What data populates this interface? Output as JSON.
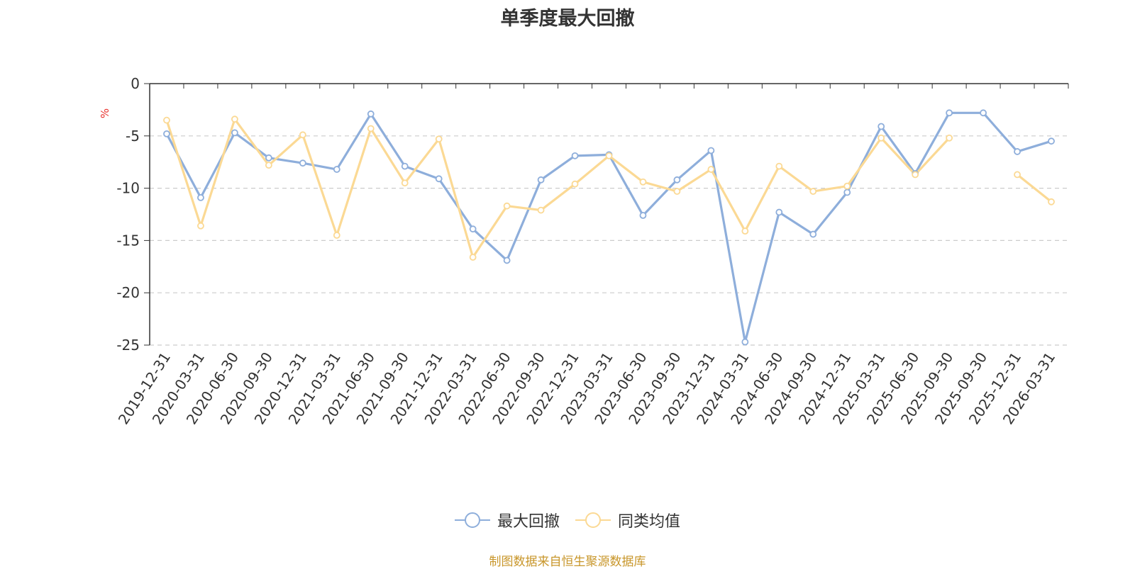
{
  "chart_data": {
    "type": "line",
    "title": "单季度最大回撤",
    "ylabel": "%",
    "ylim": [
      -25,
      0
    ],
    "yticks": [
      0,
      -5,
      -10,
      -15,
      -20,
      -25
    ],
    "grid": true,
    "legend_placement": "bottom",
    "categories": [
      "2019-12-31",
      "2020-03-31",
      "2020-06-30",
      "2020-09-30",
      "2020-12-31",
      "2021-03-31",
      "2021-06-30",
      "2021-09-30",
      "2021-12-31",
      "2022-03-31",
      "2022-06-30",
      "2022-09-30",
      "2022-12-31",
      "2023-03-31",
      "2023-06-30",
      "2023-09-30",
      "2023-12-31",
      "2024-03-31",
      "2024-06-30",
      "2024-09-30",
      "2024-12-31",
      "2025-03-31",
      "2025-06-30",
      "2025-09-30",
      "2025-09-30",
      "2025-12-31",
      "2026-03-31"
    ],
    "series": [
      {
        "name": "最大回撤",
        "color": "#8eaedb",
        "values": [
          -4.8,
          -10.9,
          -4.7,
          -7.1,
          -7.6,
          -8.2,
          -2.9,
          -7.9,
          -9.1,
          -13.9,
          -16.9,
          -9.2,
          -6.9,
          -6.8,
          -12.6,
          -9.2,
          -6.4,
          -24.7,
          -12.3,
          -14.4,
          -10.4,
          -4.1,
          -8.6,
          -2.8,
          -2.8,
          -6.5,
          -5.5
        ]
      },
      {
        "name": "同类均值",
        "color": "#fbd994",
        "values": [
          -3.5,
          -13.6,
          -3.4,
          -7.8,
          -4.9,
          -14.5,
          -4.3,
          -9.5,
          -5.3,
          -16.6,
          -11.7,
          -12.1,
          -9.6,
          -6.9,
          -9.4,
          -10.3,
          -8.2,
          -14.1,
          -7.9,
          -10.3,
          -9.8,
          -5.2,
          -8.7,
          -5.2,
          null,
          -8.7,
          -11.3
        ]
      }
    ]
  },
  "source_note": "制图数据来自恒生聚源数据库"
}
